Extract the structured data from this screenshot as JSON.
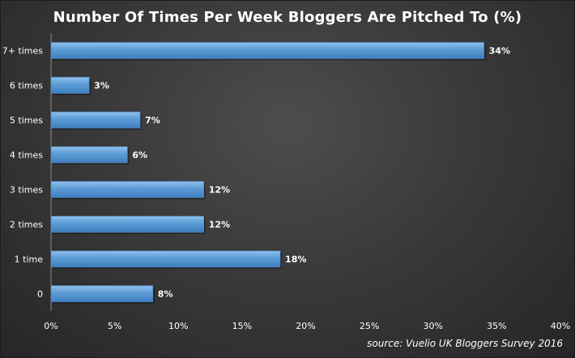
{
  "chart_data": {
    "type": "bar",
    "orientation": "horizontal",
    "title": "Number Of Times Per Week Bloggers Are Pitched To (%)",
    "categories": [
      "7+ times",
      "6 times",
      "5 times",
      "4 times",
      "3 times",
      "2 times",
      "1 time",
      "0"
    ],
    "values": [
      34,
      3,
      7,
      6,
      12,
      12,
      18,
      8
    ],
    "data_labels": [
      "34%",
      "3%",
      "7%",
      "6%",
      "12%",
      "12%",
      "18%",
      "8%"
    ],
    "xlim": [
      0,
      40
    ],
    "x_ticks": [
      0,
      5,
      10,
      15,
      20,
      25,
      30,
      35,
      40
    ],
    "x_tick_labels": [
      "0%",
      "5%",
      "10%",
      "15%",
      "20%",
      "25%",
      "30%",
      "35%",
      "40%"
    ],
    "xlabel": "",
    "ylabel": "",
    "grid": false,
    "legend": "none",
    "bar_color": "#5b9bd5",
    "source": "source:  Vuelio UK Bloggers Survey 2016"
  }
}
